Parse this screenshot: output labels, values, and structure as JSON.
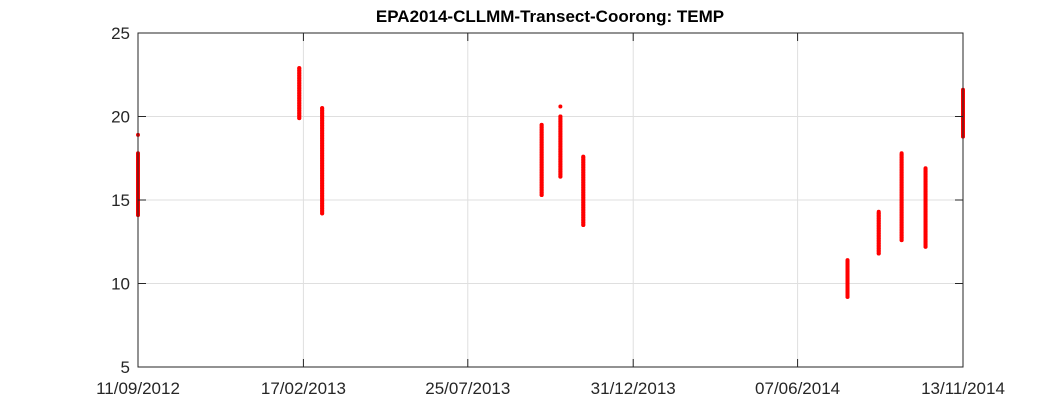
{
  "chart_data": {
    "type": "scatter",
    "title": "EPA2014-CLLMM-Transect-Coorong: TEMP",
    "xlabel": "",
    "ylabel": "",
    "x_ticks": [
      "11/09/2012",
      "17/02/2013",
      "25/07/2013",
      "31/12/2013",
      "07/06/2014",
      "13/11/2014"
    ],
    "xlim": [
      "2012-09-11",
      "2014-11-13"
    ],
    "ylim": [
      5,
      25
    ],
    "y_ticks": [
      5,
      10,
      15,
      20,
      25
    ],
    "grid": true,
    "legend": "none",
    "marker_color": "#ff0000",
    "series": [
      {
        "points": [
          {
            "x": "2012-09-11",
            "y_min": 14.1,
            "y_max": 17.8,
            "outliers": [
              18.9
            ]
          },
          {
            "x": "2013-02-13",
            "y_min": 19.9,
            "y_max": 22.9,
            "outliers": []
          },
          {
            "x": "2013-03-07",
            "y_min": 14.2,
            "y_max": 20.5,
            "outliers": []
          },
          {
            "x": "2013-10-04",
            "y_min": 15.3,
            "y_max": 19.5,
            "outliers": []
          },
          {
            "x": "2013-10-22",
            "y_min": 16.4,
            "y_max": 20.0,
            "outliers": [
              20.6
            ]
          },
          {
            "x": "2013-11-13",
            "y_min": 13.5,
            "y_max": 17.6,
            "outliers": []
          },
          {
            "x": "2014-07-25",
            "y_min": 9.2,
            "y_max": 11.4,
            "outliers": []
          },
          {
            "x": "2014-08-24",
            "y_min": 11.8,
            "y_max": 14.3,
            "outliers": []
          },
          {
            "x": "2014-09-15",
            "y_min": 12.6,
            "y_max": 17.8,
            "outliers": []
          },
          {
            "x": "2014-10-08",
            "y_min": 12.2,
            "y_max": 16.9,
            "outliers": []
          },
          {
            "x": "2014-11-13",
            "y_min": 18.8,
            "y_max": 21.6,
            "outliers": []
          }
        ]
      }
    ]
  }
}
